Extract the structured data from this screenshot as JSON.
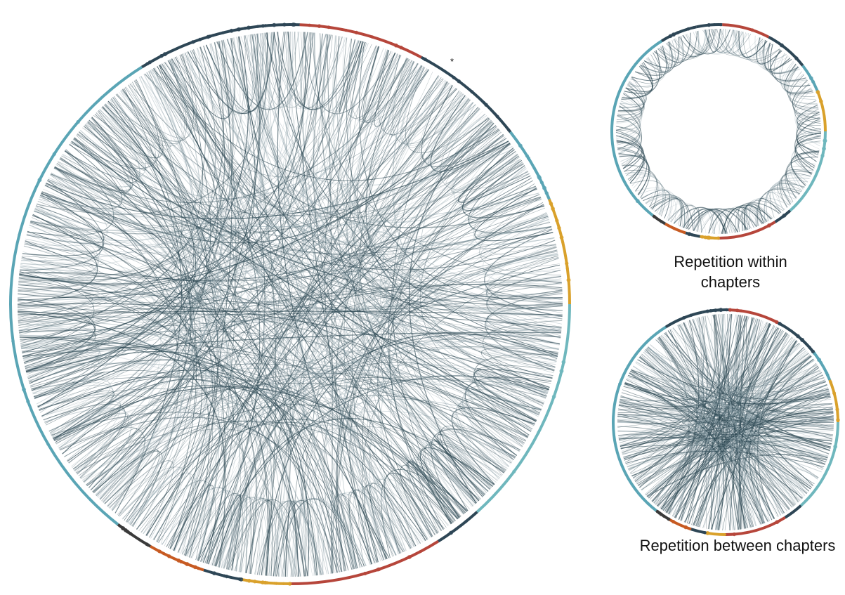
{
  "captions": {
    "within": "Repetition within chapters",
    "between": "Repetition between chapters"
  },
  "marker": "*",
  "colors": {
    "link": "#2f4a55",
    "link_light": "#8fa3ab",
    "ring": [
      "#2e4756",
      "#b6463b",
      "#d9a12b",
      "#5aa5b5",
      "#6fb7bd",
      "#c75b22",
      "#3b3b3b"
    ]
  },
  "diagram": {
    "type": "chord",
    "node_ring_segments": [
      {
        "color": "#2e4756",
        "from": 258,
        "to": 272
      },
      {
        "color": "#b6463b",
        "from": 272,
        "to": 298
      },
      {
        "color": "#2e4756",
        "from": 298,
        "to": 322
      },
      {
        "color": "#5aa5b5",
        "from": 322,
        "to": 338
      },
      {
        "color": "#d9a12b",
        "from": 338,
        "to": 360
      },
      {
        "color": "#6fb7bd",
        "from": 0,
        "to": 48
      },
      {
        "color": "#2e4756",
        "from": 48,
        "to": 58
      },
      {
        "color": "#b6463b",
        "from": 58,
        "to": 90
      },
      {
        "color": "#d9a12b",
        "from": 90,
        "to": 100
      },
      {
        "color": "#2e4756",
        "from": 100,
        "to": 108
      },
      {
        "color": "#c75b22",
        "from": 108,
        "to": 120
      },
      {
        "color": "#3b3b3b",
        "from": 120,
        "to": 128
      },
      {
        "color": "#5aa5b5",
        "from": 128,
        "to": 238
      },
      {
        "color": "#2e4756",
        "from": 238,
        "to": 258
      }
    ]
  }
}
